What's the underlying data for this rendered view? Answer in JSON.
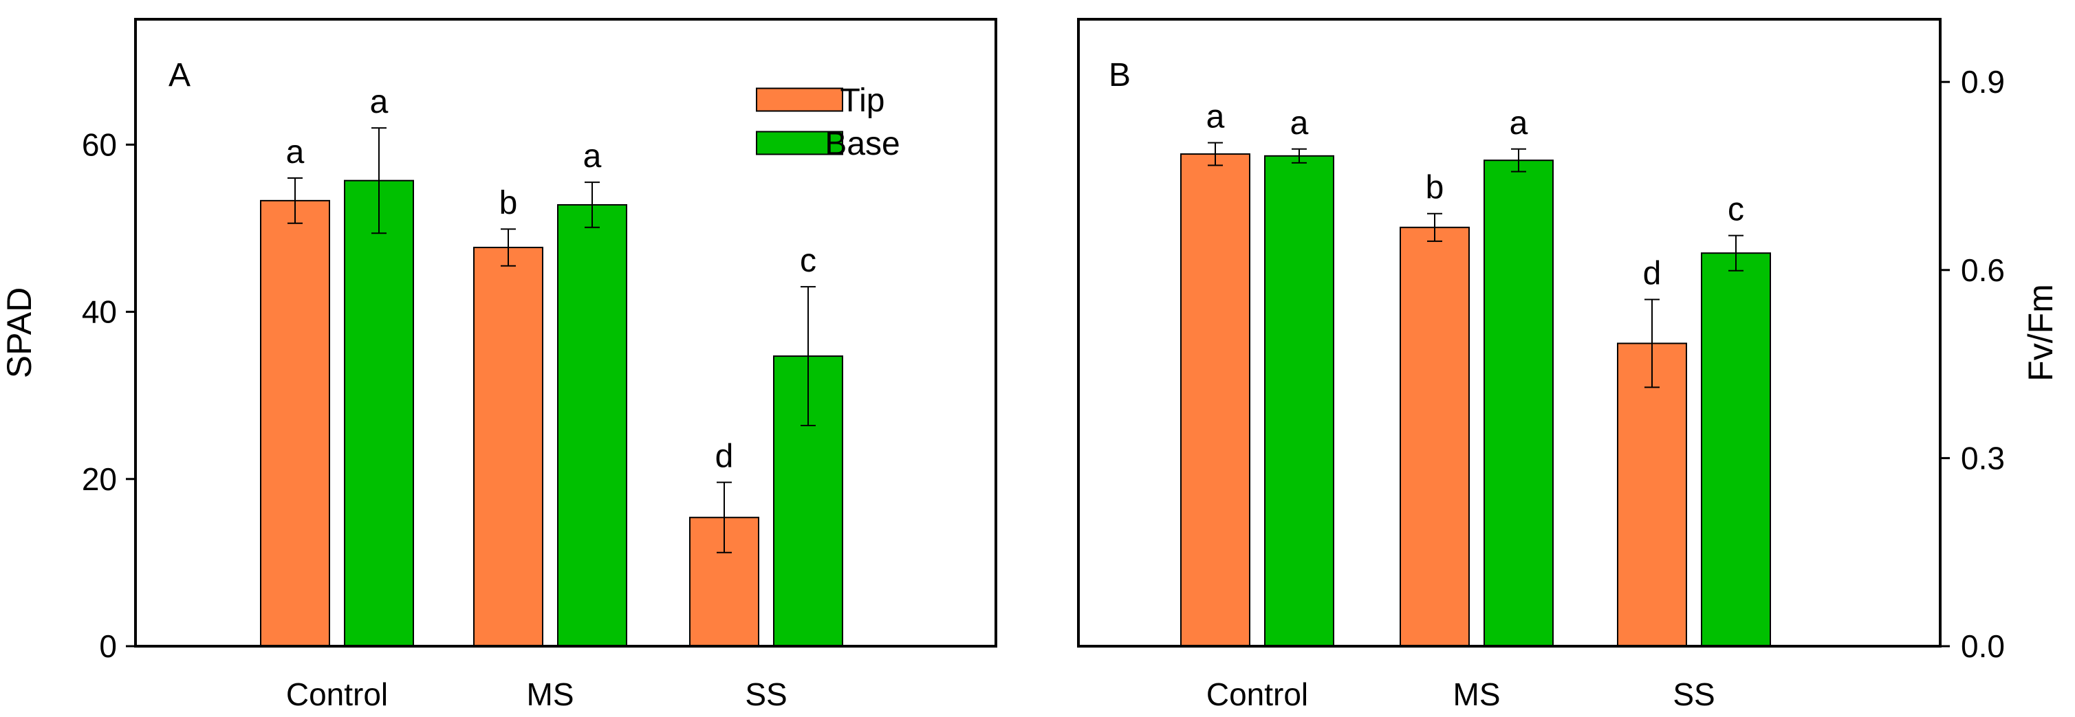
{
  "chart_data": [
    {
      "type": "bar",
      "panel_label": "A",
      "categories": [
        "Control",
        "MS",
        "SS"
      ],
      "ylabel": "SPAD",
      "xlabel": "",
      "y_axis_side": "left",
      "ylim": [
        0,
        75
      ],
      "yticks": [
        0,
        20,
        40,
        60
      ],
      "ytick_labels": [
        "0",
        "20",
        "40",
        "60"
      ],
      "legend_position": "top-right",
      "series": [
        {
          "name": "Tip",
          "color": "#ff8040",
          "values": [
            53.3,
            47.7,
            15.4
          ],
          "errors": [
            2.7,
            2.2,
            4.2
          ],
          "letters": [
            "a",
            "b",
            "d"
          ]
        },
        {
          "name": "Base",
          "color": "#00c000",
          "values": [
            55.7,
            52.8,
            34.7
          ],
          "errors": [
            6.3,
            2.7,
            8.3
          ],
          "letters": [
            "a",
            "a",
            "c"
          ]
        }
      ]
    },
    {
      "type": "bar",
      "panel_label": "B",
      "categories": [
        "Control",
        "MS",
        "SS"
      ],
      "ylabel": "Fv/Fm",
      "xlabel": "",
      "y_axis_side": "right",
      "ylim": [
        0,
        1.0
      ],
      "yticks": [
        0,
        0.3,
        0.6,
        0.9
      ],
      "ytick_labels": [
        "0.0",
        "0.3",
        "0.6",
        "0.9"
      ],
      "series": [
        {
          "name": "Tip",
          "color": "#ff8040",
          "values": [
            0.785,
            0.668,
            0.483
          ],
          "errors": [
            0.018,
            0.022,
            0.07
          ],
          "letters": [
            "a",
            "b",
            "d"
          ]
        },
        {
          "name": "Base",
          "color": "#00c000",
          "values": [
            0.782,
            0.775,
            0.627
          ],
          "errors": [
            0.011,
            0.018,
            0.028
          ],
          "letters": [
            "a",
            "a",
            "c"
          ]
        }
      ]
    }
  ]
}
